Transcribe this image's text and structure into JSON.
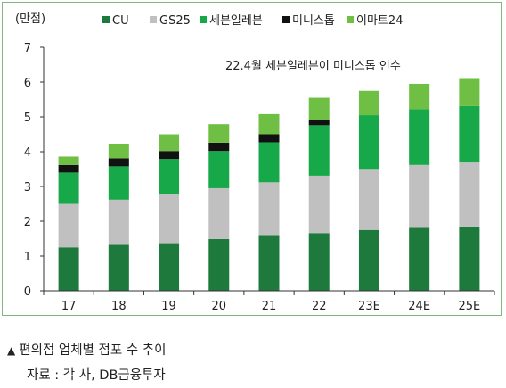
{
  "chart_data": {
    "type": "bar",
    "stacked": true,
    "unit_label": "(만점)",
    "categories": [
      "17",
      "18",
      "19",
      "20",
      "21",
      "22",
      "23E",
      "24E",
      "25E"
    ],
    "ylim": [
      0,
      7
    ],
    "yticks": [
      0,
      1,
      2,
      3,
      4,
      5,
      6,
      7
    ],
    "grid": false,
    "legend_position": "top",
    "annotation": "22.4월 세븐일레븐이 미니스톱 인수",
    "series": [
      {
        "name": "CU",
        "color": "#1e7a3c",
        "values": [
          1.25,
          1.32,
          1.37,
          1.49,
          1.58,
          1.66,
          1.75,
          1.81,
          1.85
        ]
      },
      {
        "name": "GS25",
        "color": "#c0c0c0",
        "values": [
          1.25,
          1.3,
          1.4,
          1.46,
          1.54,
          1.65,
          1.73,
          1.81,
          1.84
        ]
      },
      {
        "name": "세븐일레븐",
        "color": "#17a84a",
        "values": [
          0.9,
          0.96,
          1.02,
          1.07,
          1.15,
          1.45,
          1.57,
          1.6,
          1.62
        ]
      },
      {
        "name": "미니스톱",
        "color": "#111111",
        "values": [
          0.22,
          0.23,
          0.23,
          0.24,
          0.23,
          0.14,
          0.0,
          0.0,
          0.0
        ]
      },
      {
        "name": "이마트24",
        "color": "#6fbf45",
        "values": [
          0.24,
          0.4,
          0.48,
          0.53,
          0.58,
          0.65,
          0.7,
          0.73,
          0.78
        ]
      }
    ]
  },
  "caption": {
    "marker": "▲",
    "title": "편의점 업체별 점포 수 추이",
    "source": "자료 : 각 사, DB금융투자"
  }
}
